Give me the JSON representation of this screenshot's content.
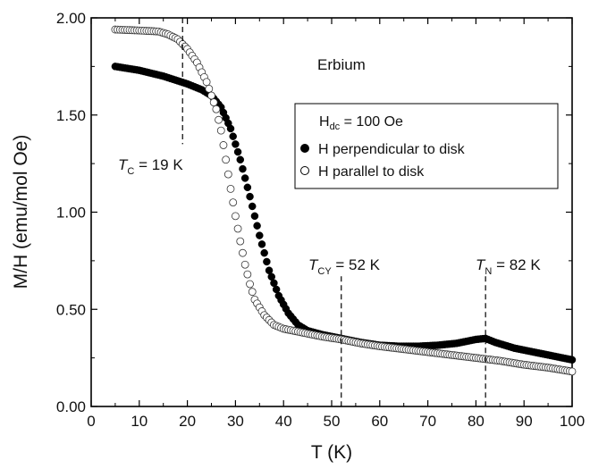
{
  "chart_data": {
    "type": "scatter",
    "annotation_title": "Erbium",
    "xlabel": "T (K)",
    "ylabel": "M/H (emu/mol Oe)",
    "xlim": [
      0,
      100
    ],
    "ylim": [
      0,
      2.0
    ],
    "x_ticks": [
      0,
      10,
      20,
      30,
      40,
      50,
      60,
      70,
      80,
      90,
      100
    ],
    "y_ticks": [
      0,
      0.5,
      1.0,
      1.5,
      2.0
    ],
    "y_tick_labels": [
      "0.00",
      "0.50",
      "1.00",
      "1.50",
      "2.00"
    ],
    "grid": false,
    "legend_position": "right",
    "legend": {
      "header_main": "H",
      "header_sub": "dc",
      "header_rest": " = 100 Oe",
      "entries": [
        "H perpendicular to disk",
        "H parallel to disk"
      ]
    },
    "markers": [
      {
        "x": 19,
        "y_from": 1.35,
        "y_to": 2.0,
        "label_main": "T",
        "label_sub": "C",
        "label_rest": " = 19 K"
      },
      {
        "x": 52,
        "y_from": 0.0,
        "y_to": 0.67,
        "label_main": "T",
        "label_sub": "CY",
        "label_rest": " = 52 K"
      },
      {
        "x": 82,
        "y_from": 0.0,
        "y_to": 0.67,
        "label_main": "T",
        "label_sub": "N",
        "label_rest": " = 82 K"
      }
    ],
    "series": [
      {
        "name": "H perpendicular to disk",
        "marker": "filled-circle",
        "points": [
          [
            5,
            1.75
          ],
          [
            10,
            1.73
          ],
          [
            15,
            1.7
          ],
          [
            20,
            1.66
          ],
          [
            23,
            1.63
          ],
          [
            25,
            1.6
          ],
          [
            27,
            1.54
          ],
          [
            29,
            1.43
          ],
          [
            31,
            1.27
          ],
          [
            33,
            1.08
          ],
          [
            35,
            0.88
          ],
          [
            37,
            0.7
          ],
          [
            39,
            0.57
          ],
          [
            41,
            0.48
          ],
          [
            43,
            0.42
          ],
          [
            45,
            0.39
          ],
          [
            48,
            0.37
          ],
          [
            52,
            0.35
          ],
          [
            56,
            0.33
          ],
          [
            60,
            0.315
          ],
          [
            64,
            0.31
          ],
          [
            68,
            0.31
          ],
          [
            72,
            0.315
          ],
          [
            76,
            0.325
          ],
          [
            80,
            0.345
          ],
          [
            82,
            0.35
          ],
          [
            84,
            0.33
          ],
          [
            88,
            0.3
          ],
          [
            92,
            0.28
          ],
          [
            96,
            0.26
          ],
          [
            100,
            0.24
          ]
        ]
      },
      {
        "name": "H parallel to disk",
        "marker": "open-circle",
        "points": [
          [
            5,
            1.94
          ],
          [
            10,
            1.935
          ],
          [
            14,
            1.93
          ],
          [
            16,
            1.915
          ],
          [
            18,
            1.89
          ],
          [
            20,
            1.84
          ],
          [
            22,
            1.77
          ],
          [
            24,
            1.67
          ],
          [
            26,
            1.53
          ],
          [
            27,
            1.42
          ],
          [
            28,
            1.27
          ],
          [
            29,
            1.12
          ],
          [
            30,
            0.98
          ],
          [
            31,
            0.85
          ],
          [
            32,
            0.73
          ],
          [
            33,
            0.63
          ],
          [
            34,
            0.55
          ],
          [
            36,
            0.47
          ],
          [
            38,
            0.42
          ],
          [
            40,
            0.4
          ],
          [
            44,
            0.38
          ],
          [
            48,
            0.36
          ],
          [
            52,
            0.345
          ],
          [
            56,
            0.325
          ],
          [
            60,
            0.31
          ],
          [
            65,
            0.295
          ],
          [
            70,
            0.28
          ],
          [
            75,
            0.265
          ],
          [
            80,
            0.25
          ],
          [
            85,
            0.235
          ],
          [
            90,
            0.215
          ],
          [
            95,
            0.2
          ],
          [
            100,
            0.18
          ]
        ]
      }
    ]
  }
}
